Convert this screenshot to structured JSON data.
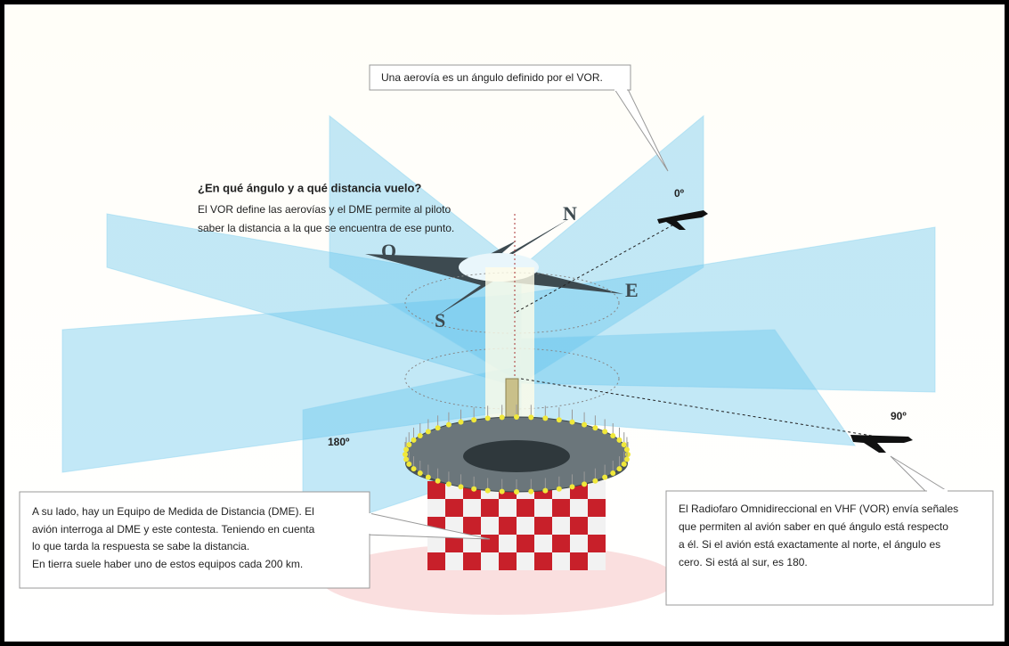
{
  "callouts": {
    "airway": "Una aerovía es un ángulo definido por el VOR.",
    "dme": [
      "A su lado, hay un Equipo de Medida de Distancia (DME). El",
      "avión interroga al DME y este contesta. Teniendo en cuenta",
      "lo que tarda la respuesta se sabe la distancia.",
      "En tierra suele haber uno de estos equipos cada 200 km."
    ],
    "vor": [
      "El Radiofaro Omnidireccional en VHF (VOR) envía señales",
      "que permiten al avión saber en qué ángulo está respecto",
      "a él. Si el avión está exactamente al norte, el ángulo es",
      "cero. Si está al sur, es 180."
    ]
  },
  "intro": {
    "title": "¿En qué ángulo y a qué distancia vuelo?",
    "lines": [
      "El VOR define las aerovías y el DME permite al piloto",
      "saber la distancia a la que se encuentra de ese punto."
    ]
  },
  "compass": {
    "n": "N",
    "e": "E",
    "s": "S",
    "o": "O"
  },
  "angles": {
    "north": "0º",
    "east": "90º",
    "south": "180º"
  }
}
